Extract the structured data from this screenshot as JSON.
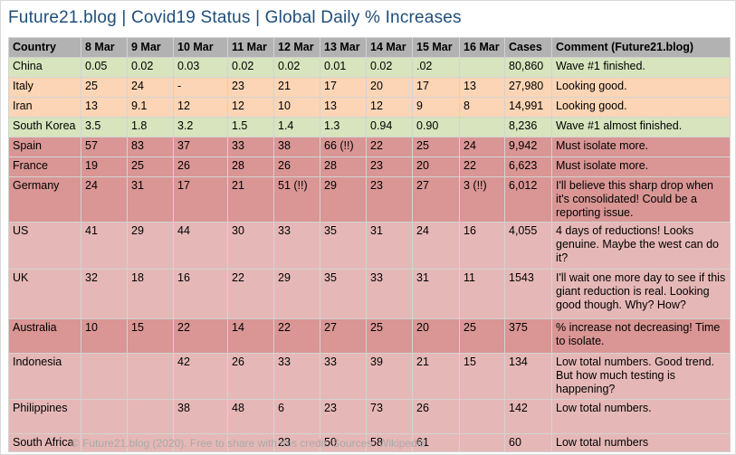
{
  "title": "Future21.blog | Covid19 Status | Global Daily % Increases",
  "footer": "© Future21.blog (2020). Free to share with this credit. Sources: Wikipedia.",
  "colors": {
    "title": "#1F4E79",
    "header_bg": "#B2B2B2",
    "green": "#D7E4BD",
    "orange": "#FBD5B5",
    "dark_pink": "#D99694",
    "light_pink": "#E5B8B7",
    "footer_text": "#A9A9A9"
  },
  "table": {
    "columns": [
      "Country",
      "8 Mar",
      "9 Mar",
      "10 Mar",
      "11 Mar",
      "12 Mar",
      "13 Mar",
      "14 Mar",
      "15 Mar",
      "16 Mar",
      "Cases",
      "Comment (Future21.blog)"
    ],
    "rows": [
      {
        "country": "China",
        "tone": "green",
        "values": [
          "0.05",
          "0.02",
          "0.03",
          "0.02",
          "0.02",
          "0.01",
          "0.02",
          ".02",
          ""
        ],
        "cases": "80,860",
        "comment": "Wave #1 finished."
      },
      {
        "country": "Italy",
        "tone": "orange",
        "values": [
          "25",
          "24",
          "-",
          "23",
          "21",
          "17",
          "20",
          "17",
          "13"
        ],
        "cases": "27,980",
        "comment": "Looking good."
      },
      {
        "country": "Iran",
        "tone": "orange",
        "values": [
          "13",
          "9.1",
          "12",
          "12",
          "10",
          "13",
          "12",
          "9",
          "8"
        ],
        "cases": "14,991",
        "comment": "Looking good."
      },
      {
        "country": "South Korea",
        "tone": "green",
        "values": [
          "3.5",
          "1.8",
          "3.2",
          "1.5",
          "1.4",
          "1.3",
          "0.94",
          "0.90",
          ""
        ],
        "cases": "8,236",
        "comment": "Wave #1 almost finished."
      },
      {
        "country": "Spain",
        "tone": "dark-pink",
        "values": [
          "57",
          "83",
          "37",
          "33",
          "38",
          "66 (!!)",
          "22",
          "25",
          "24"
        ],
        "cases": "9,942",
        "comment": "Must isolate more."
      },
      {
        "country": "France",
        "tone": "dark-pink",
        "values": [
          "19",
          "25",
          "26",
          "28",
          "26",
          "28",
          "23",
          "20",
          "22"
        ],
        "cases": "6,623",
        "comment": "Must isolate more."
      },
      {
        "country": "Germany",
        "tone": "dark-pink",
        "values": [
          "24",
          "31",
          "17",
          "21",
          "51 (!!)",
          "29",
          "23",
          "27",
          "3 (!!)"
        ],
        "cases": "6,012",
        "comment": "I'll believe this sharp drop when it's consolidated! Could be a reporting issue."
      },
      {
        "country": "US",
        "tone": "light-pink",
        "values": [
          "41",
          "29",
          "44",
          "30",
          "33",
          "35",
          "31",
          "24",
          "16"
        ],
        "cases": "4,055",
        "comment": "4 days of reductions! Looks genuine. Maybe the west can do it?"
      },
      {
        "country": "UK",
        "tone": "light-pink",
        "values": [
          "32",
          "18",
          "16",
          "22",
          "29",
          "35",
          "33",
          "31",
          "11"
        ],
        "cases": "1543",
        "comment": "I'll wait one more day to see if this giant reduction is real. Looking good though. Why? How?"
      },
      {
        "country": "Australia",
        "tone": "dark-pink",
        "values": [
          "10",
          "15",
          "22",
          "14",
          "22",
          "27",
          "25",
          "20",
          "25"
        ],
        "cases": "375",
        "comment": "% increase not decreasing! Time to isolate."
      },
      {
        "country": "Indonesia",
        "tone": "light-pink",
        "values": [
          "",
          "",
          "42",
          "26",
          "33",
          "33",
          "39",
          "21",
          "15"
        ],
        "cases": "134",
        "comment": "Low total numbers. Good trend. But how much testing is happening?"
      },
      {
        "country": "Philippines",
        "tone": "light-pink",
        "values": [
          "",
          "",
          "38",
          "48",
          "6",
          "23",
          "73",
          "26",
          ""
        ],
        "cases": "142",
        "comment": "Low total numbers."
      },
      {
        "country": "South Africa",
        "tone": "light-pink",
        "values": [
          "",
          "",
          "",
          "",
          "23",
          "50",
          "58",
          "61",
          ""
        ],
        "cases": "60",
        "comment": "Low total numbers"
      }
    ]
  }
}
